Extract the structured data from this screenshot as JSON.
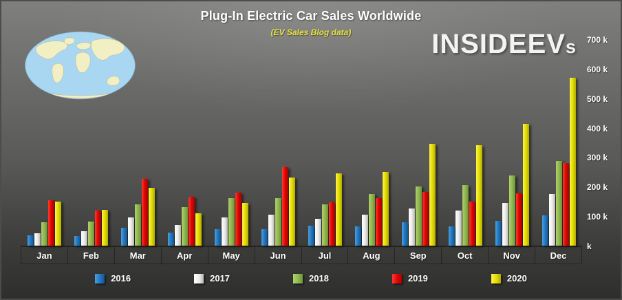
{
  "brand": {
    "main": "INSIDE",
    "ev": "EV",
    "s": "s"
  },
  "chart_data": {
    "type": "bar",
    "title": "Plug-In Electric Car Sales Worldwide",
    "subtitle": "(EV Sales Blog data)",
    "unit": "k (thousands)",
    "categories": [
      "Jan",
      "Feb",
      "Mar",
      "Apr",
      "May",
      "Jun",
      "Jul",
      "Aug",
      "Sep",
      "Oct",
      "Nov",
      "Dec"
    ],
    "series": [
      {
        "name": "2016",
        "color": "#2176c0",
        "color_light": "#4aa0dd",
        "color_dark": "#15558f",
        "values": [
          35,
          32,
          60,
          45,
          55,
          57,
          68,
          65,
          80,
          66,
          85,
          103
        ]
      },
      {
        "name": "2017",
        "color": "#ececea",
        "color_light": "#ffffff",
        "color_dark": "#b4b4b0",
        "values": [
          41,
          50,
          95,
          70,
          95,
          105,
          90,
          105,
          125,
          120,
          145,
          175
        ]
      },
      {
        "name": "2018",
        "color": "#8fb74e",
        "color_light": "#b2d06e",
        "color_dark": "#6d9238",
        "values": [
          80,
          82,
          140,
          130,
          160,
          160,
          140,
          175,
          200,
          205,
          237,
          286
        ]
      },
      {
        "name": "2019",
        "color": "#dd0500",
        "color_light": "#ff3a30",
        "color_dark": "#a50300",
        "values": [
          153,
          119,
          227,
          166,
          180,
          265,
          148,
          160,
          183,
          150,
          177,
          279
        ]
      },
      {
        "name": "2020",
        "color": "#e3dc00",
        "color_light": "#fff44a",
        "color_dark": "#b0aa00",
        "values": [
          150,
          121,
          195,
          110,
          145,
          230,
          245,
          250,
          345,
          340,
          413,
          570
        ]
      }
    ],
    "ylim": [
      0,
      700
    ],
    "ytick_labels": [
      "k",
      "100 k",
      "200 k",
      "300 k",
      "400 k",
      "500 k",
      "600 k",
      "700 k"
    ],
    "grid": false,
    "legend_position": "bottom"
  }
}
